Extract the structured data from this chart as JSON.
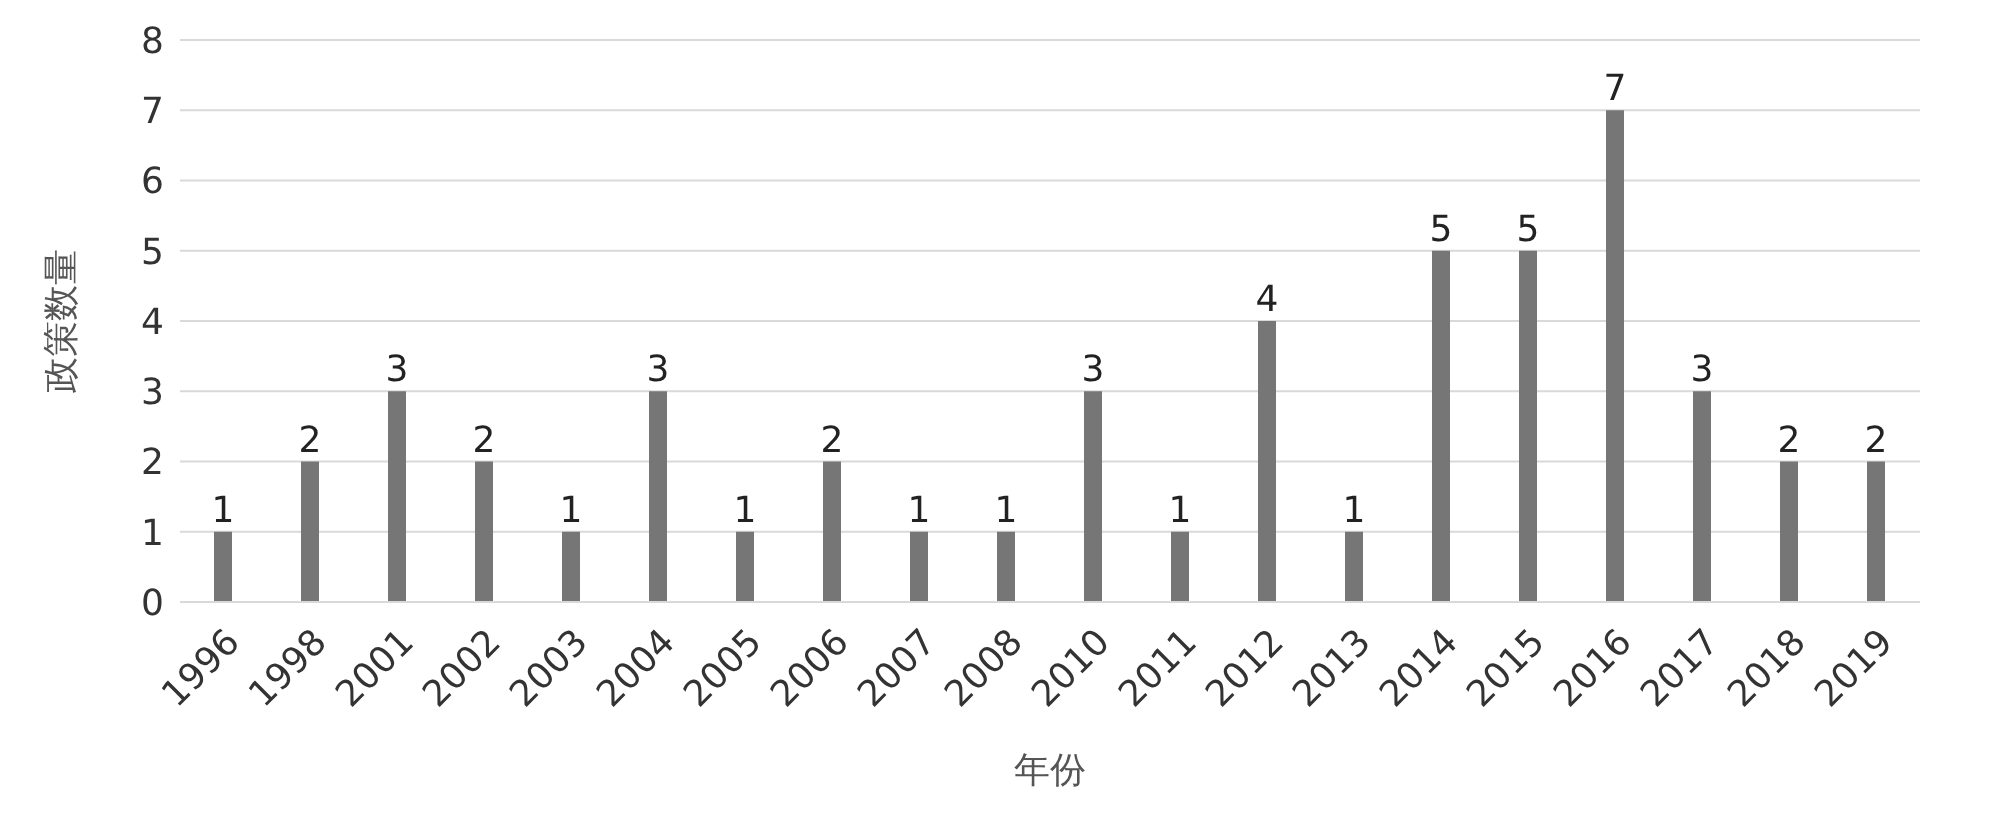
{
  "chart_data": {
    "type": "bar",
    "xlabel": "年份",
    "ylabel": "政策数量",
    "categories": [
      "1996",
      "1998",
      "2001",
      "2002",
      "2003",
      "2004",
      "2005",
      "2006",
      "2007",
      "2008",
      "2010",
      "2011",
      "2012",
      "2013",
      "2014",
      "2015",
      "2016",
      "2017",
      "2018",
      "2019"
    ],
    "values": [
      1,
      2,
      3,
      2,
      1,
      3,
      1,
      2,
      1,
      1,
      3,
      1,
      4,
      1,
      5,
      5,
      7,
      3,
      2,
      2
    ],
    "color": "#767676",
    "ylim": [
      0,
      8
    ],
    "yticks": [
      0,
      1,
      2,
      3,
      4,
      5,
      6,
      7,
      8
    ],
    "grid": "y",
    "data_labels": true
  }
}
